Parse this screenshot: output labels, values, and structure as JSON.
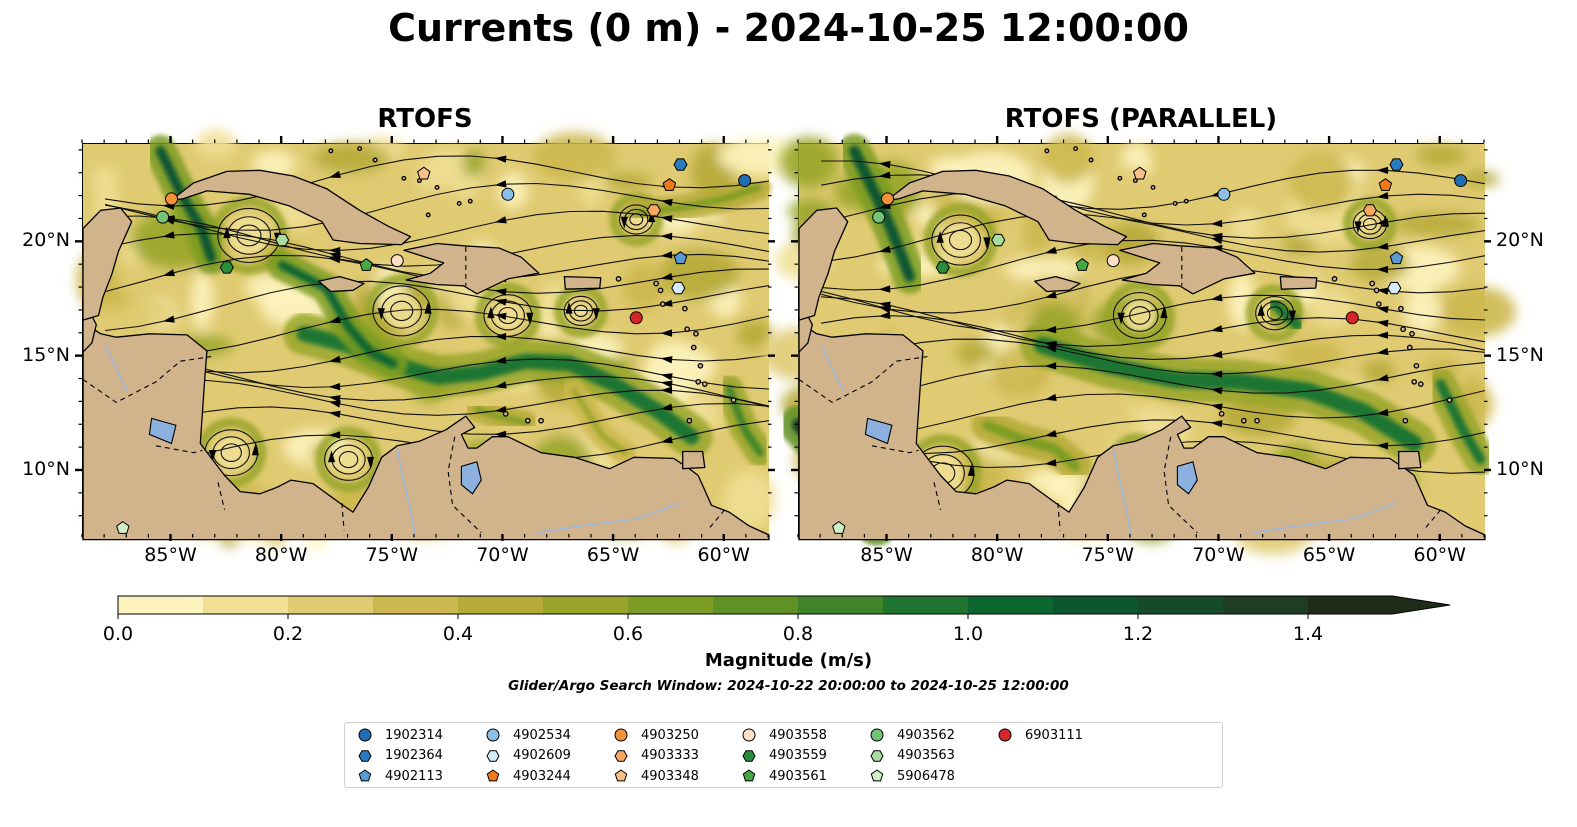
{
  "title": "Currents (0 m) - 2024-10-25 12:00:00",
  "panels": [
    {
      "title": "RTOFS"
    },
    {
      "title": "RTOFS (PARALLEL)"
    }
  ],
  "axes": {
    "lon_labels": [
      "85°W",
      "80°W",
      "75°W",
      "70°W",
      "65°W",
      "60°W"
    ],
    "lat_labels": [
      "20°N",
      "15°N",
      "10°N"
    ],
    "lon_range": [
      -89,
      -58
    ],
    "lat_range": [
      7.2,
      24.3
    ]
  },
  "colorbar": {
    "label": "Magnitude (m/s)",
    "tick_labels": [
      "0.0",
      "0.2",
      "0.4",
      "0.6",
      "0.8",
      "1.0",
      "1.2",
      "1.4"
    ],
    "colors": [
      "#fdf3be",
      "#f0df94",
      "#e0cb72",
      "#ccb84e",
      "#b6aa38",
      "#98a52a",
      "#7c9c24",
      "#5f9124",
      "#3f8429",
      "#1f7430",
      "#0d6530",
      "#0e5630",
      "#174a2d",
      "#1f3c24",
      "#1f2c1a"
    ],
    "extend": "max"
  },
  "search_window": "Glider/Argo Search Window: 2024-10-22 20:00:00 to 2024-10-25 12:00:00",
  "legend": [
    {
      "id": "1902314",
      "marker": "circle",
      "color": "#1f6eb4"
    },
    {
      "id": "1902364",
      "marker": "hexagon",
      "color": "#2a7bc0"
    },
    {
      "id": "4902113",
      "marker": "pentagon",
      "color": "#5b9bd5"
    },
    {
      "id": "4902534",
      "marker": "circle",
      "color": "#8cbfe8"
    },
    {
      "id": "4902609",
      "marker": "hexagon",
      "color": "#d4eafa"
    },
    {
      "id": "4903244",
      "marker": "pentagon",
      "color": "#f07a18"
    },
    {
      "id": "4903250",
      "marker": "circle",
      "color": "#f4923a"
    },
    {
      "id": "4903333",
      "marker": "hexagon",
      "color": "#f6a863"
    },
    {
      "id": "4903348",
      "marker": "pentagon",
      "color": "#f9c089"
    },
    {
      "id": "4903558",
      "marker": "circle",
      "color": "#fde0c4"
    },
    {
      "id": "4903559",
      "marker": "hexagon",
      "color": "#2b8c3c"
    },
    {
      "id": "4903561",
      "marker": "pentagon",
      "color": "#45a846"
    },
    {
      "id": "4903562",
      "marker": "circle",
      "color": "#73c476"
    },
    {
      "id": "4903563",
      "marker": "hexagon",
      "color": "#a8dca0"
    },
    {
      "id": "5906478",
      "marker": "pentagon",
      "color": "#d2f0c8"
    },
    {
      "id": "6903111",
      "marker": "circle",
      "color": "#d62728"
    }
  ],
  "floats_rtofs": [
    {
      "id": "4903250",
      "lon": -85.0,
      "lat": 21.9
    },
    {
      "id": "4903562",
      "lon": -85.4,
      "lat": 21.1
    },
    {
      "id": "4903559",
      "lon": -82.5,
      "lat": 18.9
    },
    {
      "id": "4903563",
      "lon": -80.0,
      "lat": 20.1
    },
    {
      "id": "4903561",
      "lon": -76.2,
      "lat": 19.0
    },
    {
      "id": "4903558",
      "lon": -74.8,
      "lat": 19.2
    },
    {
      "id": "4903348",
      "lon": -73.6,
      "lat": 23.0
    },
    {
      "id": "4902534",
      "lon": -69.8,
      "lat": 22.1
    },
    {
      "id": "1902364",
      "lon": -62.0,
      "lat": 23.4
    },
    {
      "id": "4903244",
      "lon": -62.5,
      "lat": 22.5
    },
    {
      "id": "4903333",
      "lon": -63.2,
      "lat": 21.4
    },
    {
      "id": "1902314",
      "lon": -59.1,
      "lat": 22.7
    },
    {
      "id": "4902113",
      "lon": -62.0,
      "lat": 19.3
    },
    {
      "id": "4902609",
      "lon": -62.1,
      "lat": 18.0
    },
    {
      "id": "6903111",
      "lon": -64.0,
      "lat": 16.7
    },
    {
      "id": "5906478",
      "lon": -87.2,
      "lat": 7.5
    }
  ],
  "floats_parallel": [
    {
      "id": "4903250",
      "lon": -85.0,
      "lat": 21.9
    },
    {
      "id": "4903562",
      "lon": -85.4,
      "lat": 21.1
    },
    {
      "id": "4903559",
      "lon": -82.5,
      "lat": 18.9
    },
    {
      "id": "4903563",
      "lon": -80.0,
      "lat": 20.1
    },
    {
      "id": "4903561",
      "lon": -76.2,
      "lat": 19.0
    },
    {
      "id": "4903558",
      "lon": -74.8,
      "lat": 19.2
    },
    {
      "id": "4903348",
      "lon": -73.6,
      "lat": 23.0
    },
    {
      "id": "4902534",
      "lon": -69.8,
      "lat": 22.1
    },
    {
      "id": "1902364",
      "lon": -62.0,
      "lat": 23.4
    },
    {
      "id": "4903244",
      "lon": -62.5,
      "lat": 22.5
    },
    {
      "id": "4903333",
      "lon": -63.2,
      "lat": 21.4
    },
    {
      "id": "1902314",
      "lon": -59.1,
      "lat": 22.7
    },
    {
      "id": "4902113",
      "lon": -62.0,
      "lat": 19.3
    },
    {
      "id": "4902609",
      "lon": -62.1,
      "lat": 18.0
    },
    {
      "id": "6903111",
      "lon": -64.0,
      "lat": 16.7
    },
    {
      "id": "5906478",
      "lon": -87.2,
      "lat": 7.5
    }
  ]
}
